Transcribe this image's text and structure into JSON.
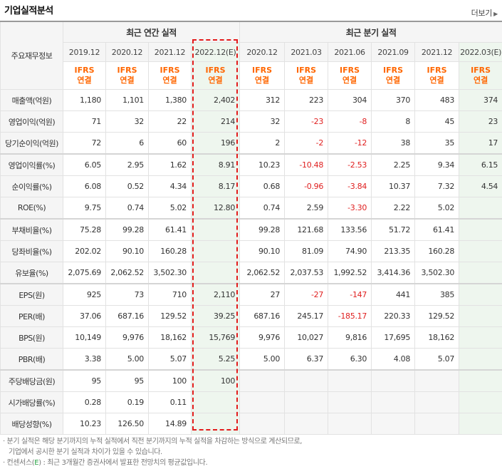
{
  "header": {
    "title": "기업실적분석",
    "more": "더보기",
    "more_icon": "arrow-right-icon"
  },
  "table": {
    "corner_label": "주요재무정보",
    "annual_label": "최근 연간 실적",
    "quarter_label": "최근 분기 실적",
    "periods": [
      "2019.12",
      "2020.12",
      "2021.12",
      "2022.12(E)",
      "2020.12",
      "2021.03",
      "2021.06",
      "2021.09",
      "2021.12",
      "2022.03(E)"
    ],
    "standard_line1": "IFRS",
    "standard_line2": "연결",
    "rows": [
      {
        "label": "매출액(억원)",
        "values": [
          "1,180",
          "1,101",
          "1,380",
          "2,402",
          "312",
          "223",
          "304",
          "370",
          "483",
          "374"
        ]
      },
      {
        "label": "영업이익(억원)",
        "values": [
          "71",
          "32",
          "22",
          "214",
          "32",
          "-23",
          "-8",
          "8",
          "45",
          "23"
        ]
      },
      {
        "label": "당기순이익(억원)",
        "values": [
          "72",
          "6",
          "60",
          "196",
          "2",
          "-2",
          "-12",
          "38",
          "35",
          "17"
        ]
      },
      {
        "label": "영업이익률(%)",
        "values": [
          "6.05",
          "2.95",
          "1.62",
          "8.91",
          "10.23",
          "-10.48",
          "-2.53",
          "2.25",
          "9.34",
          "6.15"
        ]
      },
      {
        "label": "순이익률(%)",
        "values": [
          "6.08",
          "0.52",
          "4.34",
          "8.17",
          "0.68",
          "-0.96",
          "-3.84",
          "10.37",
          "7.32",
          "4.54"
        ]
      },
      {
        "label": "ROE(%)",
        "values": [
          "9.75",
          "0.74",
          "5.02",
          "12.80",
          "0.74",
          "2.59",
          "-3.30",
          "2.22",
          "5.02",
          ""
        ]
      },
      {
        "label": "부채비율(%)",
        "values": [
          "75.28",
          "99.28",
          "61.41",
          "",
          "99.28",
          "121.68",
          "133.56",
          "51.72",
          "61.41",
          ""
        ]
      },
      {
        "label": "당좌비율(%)",
        "values": [
          "202.02",
          "90.10",
          "160.28",
          "",
          "90.10",
          "81.09",
          "74.90",
          "213.35",
          "160.28",
          ""
        ]
      },
      {
        "label": "유보율(%)",
        "values": [
          "2,075.69",
          "2,062.52",
          "3,502.30",
          "",
          "2,062.52",
          "2,037.53",
          "1,992.52",
          "3,414.36",
          "3,502.30",
          ""
        ]
      },
      {
        "label": "EPS(원)",
        "values": [
          "925",
          "73",
          "710",
          "2,110",
          "27",
          "-27",
          "-147",
          "441",
          "385",
          ""
        ]
      },
      {
        "label": "PER(배)",
        "values": [
          "37.06",
          "687.16",
          "129.52",
          "39.25",
          "687.16",
          "245.17",
          "-185.17",
          "220.33",
          "129.52",
          ""
        ]
      },
      {
        "label": "BPS(원)",
        "values": [
          "10,149",
          "9,976",
          "18,162",
          "15,769",
          "9,976",
          "10,027",
          "9,816",
          "17,695",
          "18,162",
          ""
        ]
      },
      {
        "label": "PBR(배)",
        "values": [
          "3.38",
          "5.00",
          "5.07",
          "5.25",
          "5.00",
          "6.37",
          "6.30",
          "4.08",
          "5.07",
          ""
        ]
      },
      {
        "label": "주당배당금(원)",
        "values": [
          "95",
          "95",
          "100",
          "100",
          "",
          "",
          "",
          "",
          "",
          ""
        ]
      },
      {
        "label": "시가배당률(%)",
        "values": [
          "0.28",
          "0.19",
          "0.11",
          "",
          "",
          "",
          "",
          "",
          "",
          ""
        ]
      },
      {
        "label": "배당성향(%)",
        "values": [
          "10.23",
          "126.50",
          "14.89",
          "",
          "",
          "",
          "",
          "",
          "",
          ""
        ]
      }
    ]
  },
  "notes": {
    "line1": "· 분기 실적은 해당 분기까지의 누적 실적에서 직전 분기까지의 누적 실적을 차감하는 방식으로 계산되므로,",
    "line2": "기업에서 공시한 분기 실적과 차이가 있을 수 있습니다.",
    "line3_prefix": "· 컨센서스(",
    "line3_e": "E",
    "line3_suffix": ") : 최근 3개월간 증권사에서 발표한 전망치의 평균값입니다.",
    "accent": "#27a243"
  },
  "colors": {
    "standard": "#ff6600",
    "negative": "#e02020",
    "highlight_border": "#e31b1b",
    "estimate_bg": "#eef6ee",
    "empty_bg": "#f6f6f6"
  }
}
